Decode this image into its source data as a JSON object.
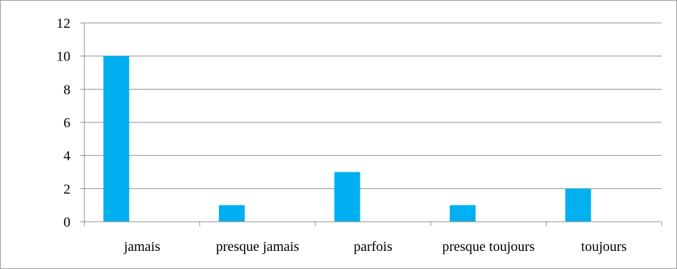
{
  "chart_data": {
    "type": "bar",
    "categories": [
      "jamais",
      "presque jamais",
      "parfois",
      "presque toujours",
      "toujours"
    ],
    "values": [
      10,
      1,
      3,
      1,
      2
    ],
    "title": "",
    "xlabel": "",
    "ylabel": "",
    "ylim": [
      0,
      12
    ],
    "yticks": [
      0,
      2,
      4,
      6,
      8,
      10,
      12
    ],
    "grid": true,
    "legend": "none",
    "colors": {
      "bar": "#00b0f0",
      "grid": "#8c8c8c",
      "axis": "#8c8c8c"
    }
  }
}
